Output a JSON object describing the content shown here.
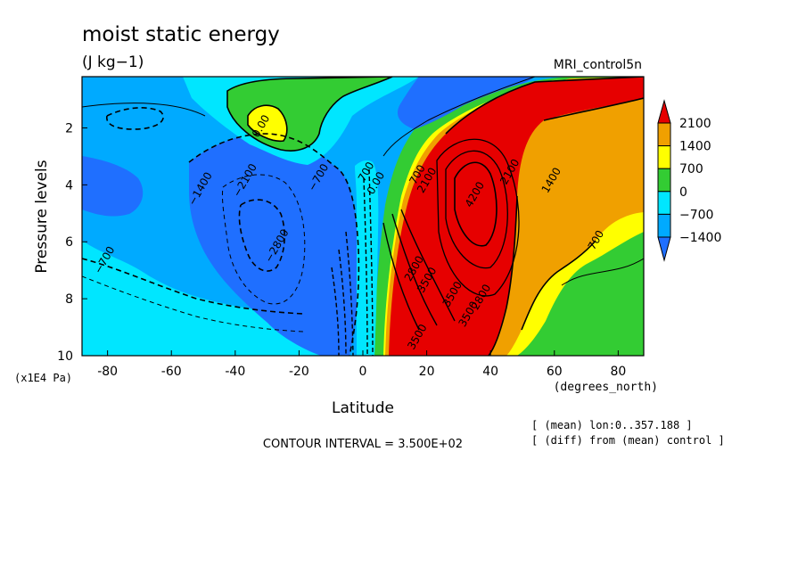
{
  "chart_data": {
    "type": "heatmap",
    "title": "moist static energy",
    "subtitle": "(J kg−1)",
    "run_label": "MRI_control5n",
    "xlabel": "Latitude",
    "x_units": "(degrees_north)",
    "ylabel": "Pressure levels",
    "y_units": "(x1E4 Pa)",
    "xlim": [
      -88,
      88
    ],
    "ylim": [
      10,
      0.2
    ],
    "x_ticks": [
      -80,
      -60,
      -40,
      -20,
      0,
      20,
      40,
      60,
      80
    ],
    "y_ticks": [
      2,
      4,
      6,
      8,
      10
    ],
    "contour_interval_text": "CONTOUR INTERVAL = 3.500E+02",
    "notes": [
      "[ (mean) lon:0..357.188 ]",
      "[ (diff) from (mean) control ]"
    ],
    "colorbar": {
      "labels": [
        "2100",
        "1400",
        "700",
        "0",
        "−700",
        "−1400"
      ],
      "colors": [
        "#e60000",
        "#f0a000",
        "#ffff00",
        "#33cc33",
        "#00e6ff",
        "#00aaff",
        "#1f6fff"
      ]
    },
    "contour_labels": [
      {
        "text": "0.00",
        "x": -31,
        "y": 2.0
      },
      {
        "text": "−700",
        "x": -13,
        "y": 3.8
      },
      {
        "text": "−1400",
        "x": -50,
        "y": 4.2
      },
      {
        "text": "−2100",
        "x": -36,
        "y": 3.9
      },
      {
        "text": "−2800",
        "x": -26,
        "y": 6.2
      },
      {
        "text": "−700",
        "x": -80,
        "y": 6.7
      },
      {
        "text": "700",
        "x": 2,
        "y": 3.6
      },
      {
        "text": "0.00",
        "x": 5,
        "y": 4.0
      },
      {
        "text": "700",
        "x": 18,
        "y": 3.7
      },
      {
        "text": "2100",
        "x": 21,
        "y": 3.9
      },
      {
        "text": "4200",
        "x": 36,
        "y": 4.4
      },
      {
        "text": "2100",
        "x": 47,
        "y": 3.6
      },
      {
        "text": "1400",
        "x": 60,
        "y": 3.9
      },
      {
        "text": "700",
        "x": 74,
        "y": 6.0
      },
      {
        "text": "2800",
        "x": 17,
        "y": 7.0
      },
      {
        "text": "3500",
        "x": 21,
        "y": 7.4
      },
      {
        "text": "3500",
        "x": 29,
        "y": 7.9
      },
      {
        "text": "2800",
        "x": 38,
        "y": 8.0
      },
      {
        "text": "3500",
        "x": 34,
        "y": 8.6
      },
      {
        "text": "3500",
        "x": 18,
        "y": 9.4
      }
    ]
  }
}
